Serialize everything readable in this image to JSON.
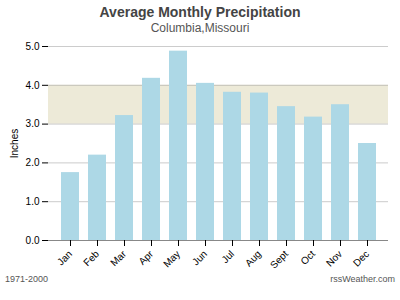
{
  "chart_data": {
    "type": "bar",
    "title": "Average Monthly Precipitation",
    "subtitle": "Columbia,Missouri",
    "ylabel": "Inches",
    "footnotes": [
      "1971-2000",
      "rssWeather.com"
    ],
    "categories": [
      "Jan",
      "Feb",
      "Mar",
      "Apr",
      "May",
      "Jun",
      "Jul",
      "Aug",
      "Sept",
      "Oct",
      "Nov",
      "Dec"
    ],
    "values": [
      1.75,
      2.2,
      3.22,
      4.18,
      4.88,
      4.05,
      3.82,
      3.8,
      3.45,
      3.18,
      3.5,
      2.5
    ],
    "color": "#ADD8E6",
    "band": {
      "ymin": 3.0,
      "ymax": 4.0,
      "color": "#EDEAD8"
    },
    "ylim": [
      0.0,
      5.0
    ],
    "yticks": [
      {
        "value": 0,
        "label": "0.0"
      },
      {
        "value": 1,
        "label": "1.0"
      },
      {
        "value": 2,
        "label": "2.0"
      },
      {
        "value": 3,
        "label": "3.0"
      },
      {
        "value": 4,
        "label": "4.0"
      },
      {
        "value": 5,
        "label": "5.0"
      }
    ],
    "grid": true
  }
}
